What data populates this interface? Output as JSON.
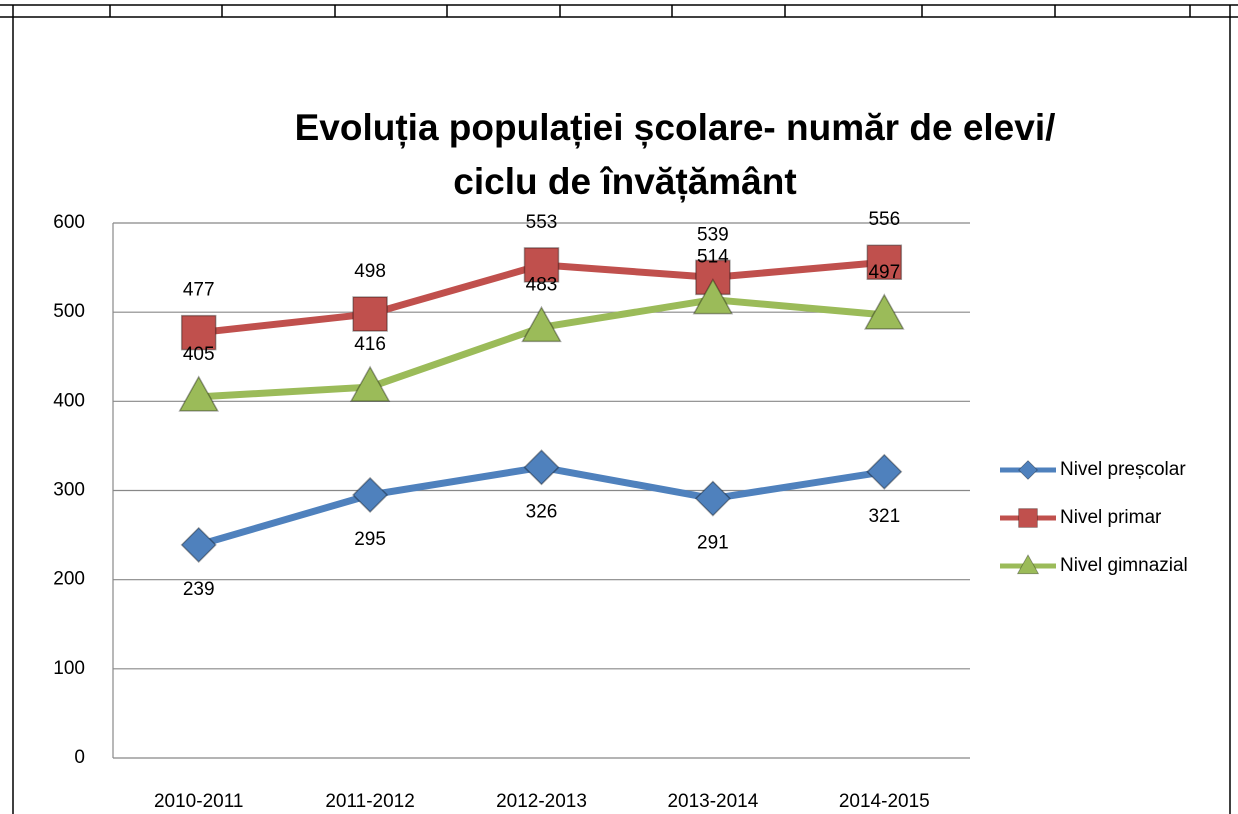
{
  "chart_data": {
    "type": "line",
    "title": [
      "Evoluția populației școlare- număr de elevi/",
      "ciclu de învățământ"
    ],
    "categories": [
      "2010-2011",
      "2011-2012",
      "2012-2013",
      "2013-2014",
      "2014-2015"
    ],
    "series": [
      {
        "name": "Nivel preșcolar",
        "color": "#4f81bd",
        "marker": "diamond",
        "label_position": "below",
        "values": [
          239,
          295,
          326,
          291,
          321
        ]
      },
      {
        "name": "Nivel primar",
        "color": "#c0504d",
        "marker": "square",
        "label_position": "above",
        "values": [
          477,
          498,
          553,
          539,
          556
        ]
      },
      {
        "name": "Nivel gimnazial",
        "color": "#9bbb59",
        "marker": "triangle",
        "label_position": "above",
        "values": [
          405,
          416,
          483,
          514,
          497
        ]
      }
    ],
    "ylim": [
      0,
      600
    ],
    "yticks": [
      0,
      100,
      200,
      300,
      400,
      500,
      600
    ],
    "grid": true,
    "legend": "right"
  }
}
